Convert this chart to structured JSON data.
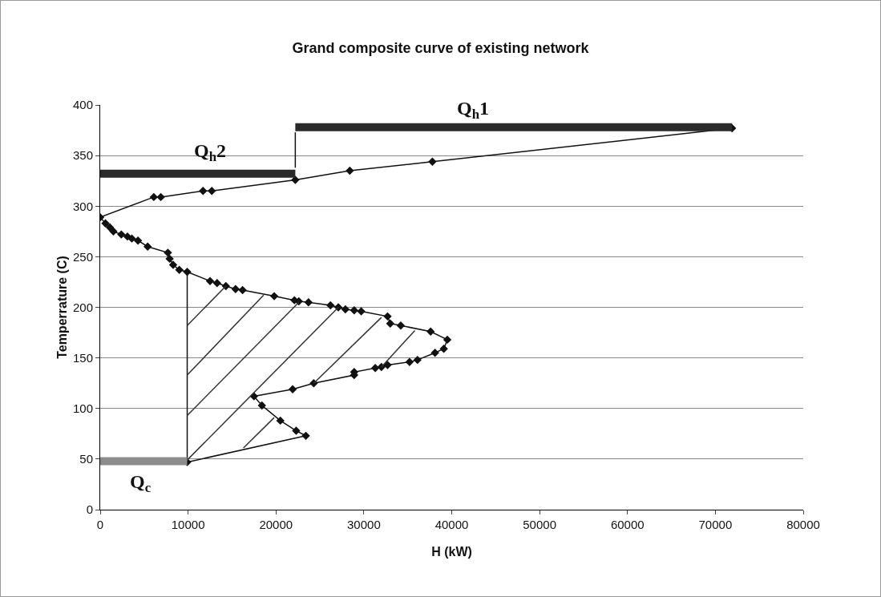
{
  "chart_data": {
    "type": "line",
    "title": "Grand composite curve of existing network",
    "xlabel": "H (kW)",
    "ylabel": "Temperrature (C)",
    "xlim": [
      0,
      80000
    ],
    "ylim": [
      0,
      400
    ],
    "xticks": [
      0,
      10000,
      20000,
      30000,
      40000,
      50000,
      60000,
      70000,
      80000
    ],
    "yticks": [
      0,
      50,
      100,
      150,
      200,
      250,
      300,
      350,
      400
    ],
    "grid": "y",
    "line_style": "solid",
    "series": [
      {
        "color": "#111111",
        "marker": "diamond",
        "x": [
          71900,
          37800,
          28400,
          22200,
          12700,
          11700,
          6900,
          6100,
          0,
          600,
          1100,
          1500,
          2400,
          3100,
          3600,
          4300,
          5400,
          7700,
          7900,
          8300,
          9000,
          9900,
          12500,
          13300,
          14300,
          15400,
          16200,
          19800,
          22100,
          22600,
          23700,
          26200,
          27100,
          27900,
          28900,
          29700,
          32700,
          33000,
          34200,
          37600,
          39500,
          39100,
          38100,
          36100,
          35200,
          32700,
          32000,
          31300,
          28900,
          28900,
          24300,
          21900,
          17500,
          18400,
          20500,
          22300,
          23400,
          9900
        ],
        "values": [
          377,
          344,
          335,
          326,
          315,
          315,
          309,
          309,
          289,
          283,
          279,
          275,
          272,
          270,
          268,
          266,
          260,
          254,
          248,
          242,
          237,
          235,
          226,
          224,
          221,
          218,
          217,
          211,
          207,
          206,
          205,
          202,
          200,
          198,
          197,
          196,
          191,
          184,
          182,
          176,
          168,
          159,
          155,
          148,
          146,
          143,
          141,
          140,
          136,
          133,
          125,
          119,
          112,
          103,
          88,
          78,
          73,
          47
        ]
      },
      {
        "color": "#111111",
        "marker": "none",
        "x": [
          9900,
          9900
        ],
        "values": [
          47,
          235
        ]
      },
      {
        "color": "#333333",
        "marker": "none",
        "x": [
          9900,
          14300,
          null,
          9900,
          18600,
          null,
          9900,
          22600,
          null,
          9900,
          27100,
          null,
          24300,
          32000,
          null,
          32000,
          35800,
          null,
          16300,
          19800
        ],
        "values": [
          182,
          221,
          null,
          133,
          212,
          null,
          93,
          205,
          null,
          49,
          200,
          null,
          125,
          190,
          null,
          141,
          177,
          null,
          61,
          91
        ]
      },
      {
        "color": "#111111",
        "marker": "none",
        "x": [
          22200,
          22200
        ],
        "values": [
          338,
          373
        ]
      },
      {
        "color": "#2b2b2b",
        "marker": "none",
        "x": [
          22200,
          71900
        ],
        "values": [
          378,
          378
        ]
      },
      {
        "color": "#2b2b2b",
        "marker": "none",
        "x": [
          0,
          22200
        ],
        "values": [
          332,
          332
        ]
      },
      {
        "color": "#8c8c8c",
        "marker": "none",
        "x": [
          0,
          9900
        ],
        "values": [
          48,
          48
        ]
      }
    ],
    "annotations": [
      "Q$_{h}$1",
      "Q$_{h}$2",
      "Q$_{c}$"
    ]
  }
}
